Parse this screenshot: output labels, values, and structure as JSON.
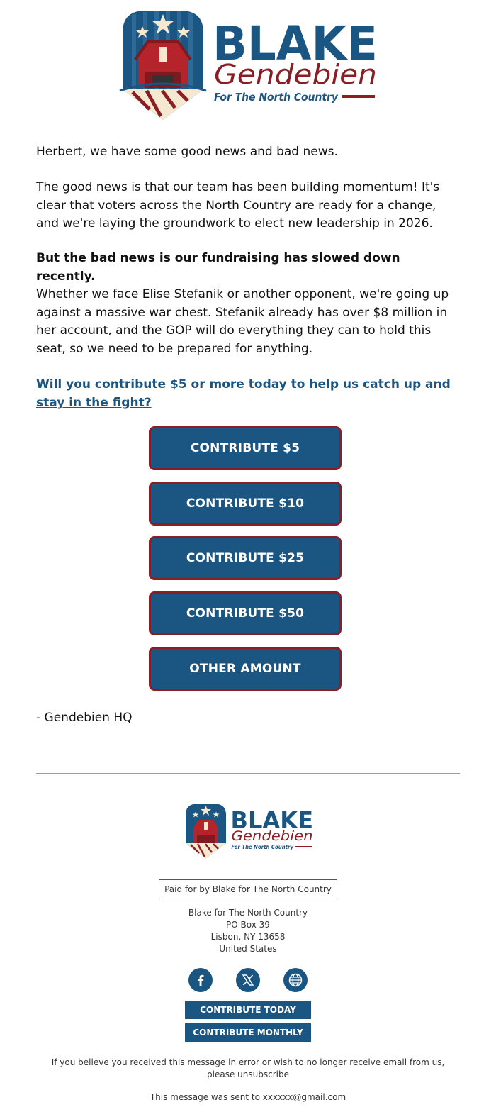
{
  "colors": {
    "brand_blue": "#1b5582",
    "brand_red": "#8b1e25",
    "cream": "#f4e8d1"
  },
  "logo": {
    "name_first": "BLAKE",
    "name_last": "Gendebien",
    "tagline": "For The North Country"
  },
  "body": {
    "greeting": "Herbert, we have some good news and bad news.",
    "good_news": "The good news is that our team has been building momentum! It's clear that voters across the North Country are ready for a change, and we're laying the groundwork to elect new leadership in 2026.",
    "bad_news": "But the bad news is our fundraising has slowed down recently.",
    "opponent": "Whether we face Elise Stefanik or another opponent, we're going up against a massive war chest. Stefanik already has over $8 million in her account, and the GOP will do everything they can to hold this seat, so we need to be prepared for anything.",
    "ask_link": "Will you contribute $5 or more today to help us catch up and stay in the fight?",
    "signoff": "- Gendebien HQ"
  },
  "donate_buttons": [
    {
      "label": "CONTRIBUTE $5"
    },
    {
      "label": "CONTRIBUTE $10"
    },
    {
      "label": "CONTRIBUTE $25"
    },
    {
      "label": "CONTRIBUTE $50"
    },
    {
      "label": "OTHER AMOUNT"
    }
  ],
  "footer": {
    "paid_for": "Paid for by Blake for The North Country",
    "address": [
      "Blake for The North Country",
      "PO Box 39",
      "Lisbon, NY 13658",
      "United States"
    ],
    "social_icons": [
      "facebook-icon",
      "x-icon",
      "globe-icon"
    ],
    "contribute_today": "CONTRIBUTE TODAY",
    "contribute_monthly": "CONTRIBUTE MONTHLY",
    "unsubscribe_text": "If you believe you received this message in error or wish to no longer receive email from us, please unsubscribe",
    "sent_to": "This message was sent to xxxxxx@gmail.com"
  }
}
